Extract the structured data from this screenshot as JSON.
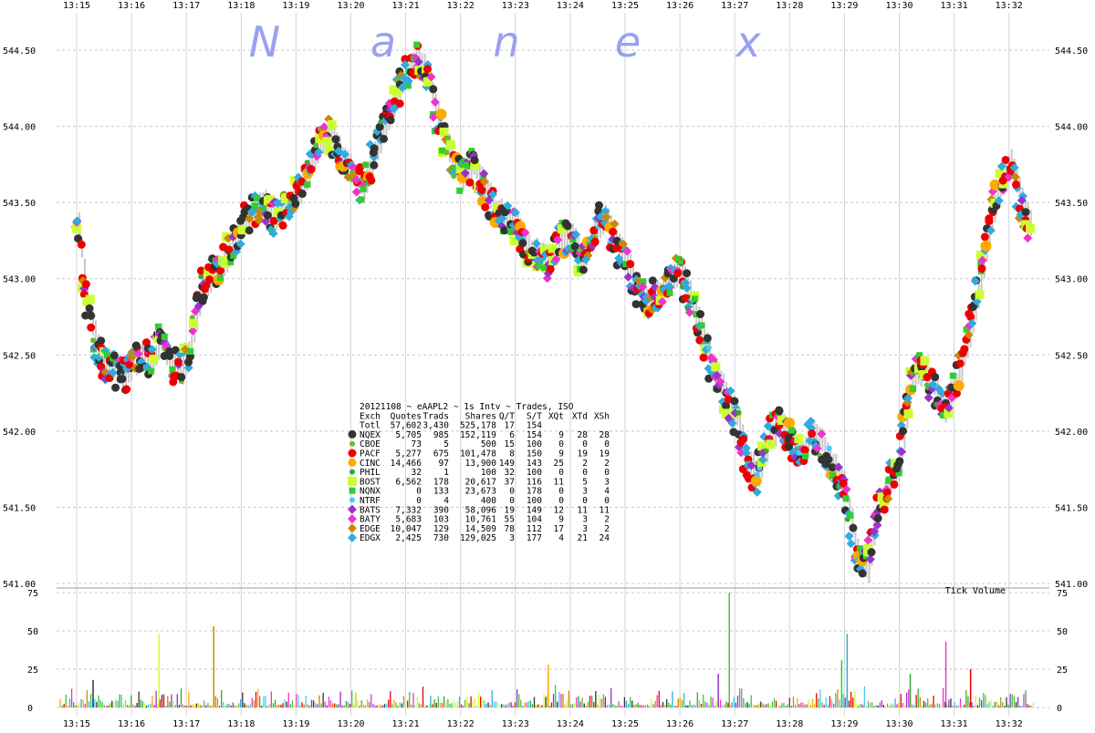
{
  "watermark": [
    "N",
    "a",
    "n",
    "e",
    "x"
  ],
  "chart_data": {
    "type": "scatter",
    "title": "20121108 ~ eAAPL2 ~ 1s Intv ~ Trades, ISO",
    "ylabel": "",
    "xlabel": "",
    "x_ticks": [
      "13:15",
      "13:16",
      "13:17",
      "13:18",
      "13:19",
      "13:20",
      "13:21",
      "13:22",
      "13:23",
      "13:24",
      "13:25",
      "13:26",
      "13:27",
      "13:28",
      "13:29",
      "13:30",
      "13:31",
      "13:32"
    ],
    "price_ticks": [
      "544.50",
      "544.00",
      "543.50",
      "543.00",
      "542.50",
      "542.00",
      "541.50",
      "541.00"
    ],
    "price_ylim": [
      541.0,
      544.5
    ],
    "volume_label": "Tick Volume",
    "volume_ticks": [
      "75",
      "50",
      "25",
      "0"
    ],
    "volume_ylim": [
      0,
      75
    ],
    "grid": true,
    "price_path": [
      [
        0.0,
        543.35
      ],
      [
        0.1,
        543.05
      ],
      [
        0.2,
        542.8
      ],
      [
        0.35,
        542.55
      ],
      [
        0.5,
        542.45
      ],
      [
        0.7,
        542.4
      ],
      [
        0.85,
        542.35
      ],
      [
        1.0,
        542.45
      ],
      [
        1.2,
        542.5
      ],
      [
        1.35,
        542.45
      ],
      [
        1.5,
        542.6
      ],
      [
        1.7,
        542.45
      ],
      [
        1.9,
        542.4
      ],
      [
        2.05,
        542.55
      ],
      [
        2.15,
        542.75
      ],
      [
        2.25,
        542.95
      ],
      [
        2.4,
        543.0
      ],
      [
        2.55,
        543.05
      ],
      [
        2.65,
        543.1
      ],
      [
        2.8,
        543.2
      ],
      [
        3.0,
        543.35
      ],
      [
        3.2,
        543.45
      ],
      [
        3.4,
        543.5
      ],
      [
        3.6,
        543.4
      ],
      [
        3.8,
        543.45
      ],
      [
        4.0,
        543.55
      ],
      [
        4.2,
        543.7
      ],
      [
        4.4,
        543.9
      ],
      [
        4.6,
        543.95
      ],
      [
        4.8,
        543.8
      ],
      [
        5.0,
        543.7
      ],
      [
        5.2,
        543.6
      ],
      [
        5.4,
        543.8
      ],
      [
        5.6,
        544.0
      ],
      [
        5.8,
        544.2
      ],
      [
        6.0,
        544.35
      ],
      [
        6.2,
        544.45
      ],
      [
        6.4,
        544.3
      ],
      [
        6.6,
        544.0
      ],
      [
        6.8,
        543.8
      ],
      [
        7.0,
        543.65
      ],
      [
        7.2,
        543.75
      ],
      [
        7.4,
        543.6
      ],
      [
        7.6,
        543.45
      ],
      [
        7.8,
        543.4
      ],
      [
        8.0,
        543.35
      ],
      [
        8.2,
        543.2
      ],
      [
        8.4,
        543.15
      ],
      [
        8.6,
        543.1
      ],
      [
        8.8,
        543.25
      ],
      [
        9.0,
        543.3
      ],
      [
        9.2,
        543.1
      ],
      [
        9.4,
        543.3
      ],
      [
        9.6,
        543.4
      ],
      [
        9.8,
        543.25
      ],
      [
        10.0,
        543.1
      ],
      [
        10.2,
        542.95
      ],
      [
        10.4,
        542.85
      ],
      [
        10.6,
        542.9
      ],
      [
        10.8,
        543.0
      ],
      [
        11.0,
        543.05
      ],
      [
        11.2,
        542.85
      ],
      [
        11.4,
        542.6
      ],
      [
        11.6,
        542.4
      ],
      [
        11.8,
        542.25
      ],
      [
        12.0,
        542.1
      ],
      [
        12.2,
        541.8
      ],
      [
        12.4,
        541.7
      ],
      [
        12.6,
        541.95
      ],
      [
        12.8,
        542.05
      ],
      [
        13.0,
        541.95
      ],
      [
        13.2,
        541.85
      ],
      [
        13.4,
        542.0
      ],
      [
        13.6,
        541.9
      ],
      [
        13.8,
        541.75
      ],
      [
        14.0,
        541.6
      ],
      [
        14.2,
        541.2
      ],
      [
        14.4,
        541.1
      ],
      [
        14.6,
        541.5
      ],
      [
        14.8,
        541.65
      ],
      [
        15.0,
        541.8
      ],
      [
        15.2,
        542.35
      ],
      [
        15.4,
        542.4
      ],
      [
        15.6,
        542.3
      ],
      [
        15.8,
        542.15
      ],
      [
        16.0,
        542.3
      ],
      [
        16.2,
        542.55
      ],
      [
        16.4,
        542.9
      ],
      [
        16.6,
        543.3
      ],
      [
        16.8,
        543.6
      ],
      [
        17.0,
        543.75
      ],
      [
        17.2,
        543.5
      ],
      [
        17.4,
        543.3
      ]
    ],
    "volume_bars": [
      [
        0.3,
        18
      ],
      [
        1.5,
        48
      ],
      [
        2.5,
        53
      ],
      [
        8.6,
        28
      ],
      [
        11.7,
        22
      ],
      [
        11.9,
        75
      ],
      [
        13.95,
        31
      ],
      [
        14.05,
        48
      ],
      [
        15.2,
        22
      ],
      [
        15.85,
        43
      ],
      [
        16.3,
        25
      ]
    ],
    "legend": [
      {
        "exch": "Totl",
        "quotes": "57,602",
        "trads": "3,430",
        "shares": "525,178",
        "qt": "17",
        "st": "154",
        "xqt": "",
        "xtd": "",
        "xsh": "",
        "color": "",
        "marker": ""
      },
      {
        "exch": "NQEX",
        "quotes": "5,705",
        "trads": "985",
        "shares": "152,119",
        "qt": "6",
        "st": "154",
        "xqt": "9",
        "xtd": "28",
        "xsh": "28",
        "color": "#333333",
        "marker": "circle"
      },
      {
        "exch": "CBOE",
        "quotes": "73",
        "trads": "5",
        "shares": "500",
        "qt": "15",
        "st": "100",
        "xqt": "0",
        "xtd": "0",
        "xsh": "0",
        "color": "#66bb33",
        "marker": "dot"
      },
      {
        "exch": "PACF",
        "quotes": "5,277",
        "trads": "675",
        "shares": "101,478",
        "qt": "8",
        "st": "150",
        "xqt": "9",
        "xtd": "19",
        "xsh": "19",
        "color": "#ee0000",
        "marker": "circle"
      },
      {
        "exch": "CINC",
        "quotes": "14,466",
        "trads": "97",
        "shares": "13,900",
        "qt": "149",
        "st": "143",
        "xqt": "25",
        "xtd": "2",
        "xsh": "2",
        "color": "#ffaa00",
        "marker": "bigcircle"
      },
      {
        "exch": "PHIL",
        "quotes": "32",
        "trads": "1",
        "shares": "100",
        "qt": "32",
        "st": "100",
        "xqt": "0",
        "xtd": "0",
        "xsh": "0",
        "color": "#33aa33",
        "marker": "dot"
      },
      {
        "exch": "BOST",
        "quotes": "6,562",
        "trads": "178",
        "shares": "20,617",
        "qt": "37",
        "st": "116",
        "xqt": "11",
        "xtd": "5",
        "xsh": "3",
        "color": "#ccff33",
        "marker": "square"
      },
      {
        "exch": "NQNX",
        "quotes": "0",
        "trads": "133",
        "shares": "23,673",
        "qt": "0",
        "st": "178",
        "xqt": "0",
        "xtd": "3",
        "xsh": "4",
        "color": "#33cc33",
        "marker": "smallsquare"
      },
      {
        "exch": "NTRF",
        "quotes": "0",
        "trads": "4",
        "shares": "400",
        "qt": "0",
        "st": "100",
        "xqt": "0",
        "xtd": "0",
        "xsh": "0",
        "color": "#44ccff",
        "marker": "dot"
      },
      {
        "exch": "BATS",
        "quotes": "7,332",
        "trads": "390",
        "shares": "58,096",
        "qt": "19",
        "st": "149",
        "xqt": "12",
        "xtd": "11",
        "xsh": "11",
        "color": "#9933cc",
        "marker": "diamond"
      },
      {
        "exch": "BATY",
        "quotes": "5,683",
        "trads": "103",
        "shares": "10,761",
        "qt": "55",
        "st": "104",
        "xqt": "9",
        "xtd": "3",
        "xsh": "2",
        "color": "#ee33cc",
        "marker": "diamond"
      },
      {
        "exch": "EDGE",
        "quotes": "10,047",
        "trads": "129",
        "shares": "14,509",
        "qt": "78",
        "st": "112",
        "xqt": "17",
        "xtd": "3",
        "xsh": "2",
        "color": "#cc8800",
        "marker": "diamond"
      },
      {
        "exch": "EDGX",
        "quotes": "2,425",
        "trads": "730",
        "shares": "129,025",
        "qt": "3",
        "st": "177",
        "xqt": "4",
        "xtd": "21",
        "xsh": "24",
        "color": "#33aadd",
        "marker": "diamond"
      }
    ],
    "legend_columns": [
      "Exch",
      "Quotes",
      "Trads",
      "Shares",
      "Q/T",
      "S/T",
      "XQt",
      "XTd",
      "XSh"
    ]
  }
}
